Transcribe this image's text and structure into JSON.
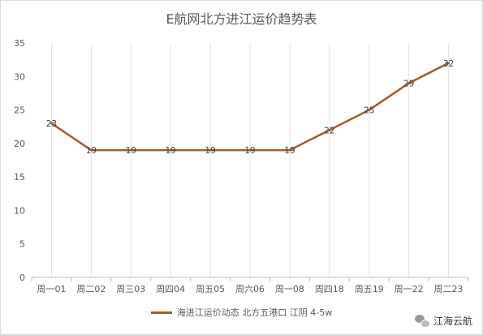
{
  "chart_data": {
    "type": "line",
    "title": "E航网北方进江运价趋势表",
    "categories": [
      "周一01",
      "周二02",
      "周三03",
      "周四04",
      "周五05",
      "周六06",
      "周一08",
      "周四18",
      "周五19",
      "周一22",
      "周二23"
    ],
    "series": [
      {
        "name": "海进江运价动态 北方五港口 江阴 4-5w",
        "values": [
          23,
          19,
          19,
          19,
          19,
          19,
          19,
          22,
          25,
          29,
          32
        ],
        "color": "#a9582c"
      }
    ],
    "ylim": [
      0,
      35
    ],
    "yticks": [
      0,
      5,
      10,
      15,
      20,
      25,
      30,
      35
    ],
    "grid": "vertical",
    "legend": "bottom"
  },
  "watermark": {
    "text": "江海云航",
    "icon": "wechat-icon"
  }
}
